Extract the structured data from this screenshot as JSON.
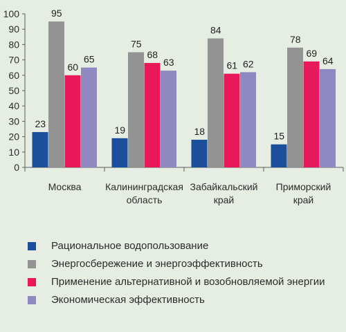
{
  "chart_data": {
    "type": "bar",
    "categories": [
      [
        "Москва"
      ],
      [
        "Калининградская",
        "область"
      ],
      [
        "Забайкальский",
        "край"
      ],
      [
        "Приморский",
        "край"
      ]
    ],
    "ylim": [
      0,
      100
    ],
    "yticks": [
      0,
      10,
      20,
      30,
      40,
      50,
      60,
      70,
      80,
      90,
      100
    ],
    "grid": false,
    "legend_position": "bottom",
    "series": [
      {
        "name": "Рациональное водопользование",
        "color": "#1b4f9c",
        "values": [
          23,
          19,
          18,
          15
        ]
      },
      {
        "name": "Энергосбережение и энергоэффективность",
        "color": "#939393",
        "values": [
          95,
          75,
          84,
          78
        ]
      },
      {
        "name": "Применение альтернативной и возобновляемой энергии",
        "color": "#e8185a",
        "values": [
          60,
          68,
          61,
          69
        ]
      },
      {
        "name": "Экономическая эффективность",
        "color": "#8f88c1",
        "values": [
          65,
          63,
          62,
          64
        ]
      }
    ]
  }
}
